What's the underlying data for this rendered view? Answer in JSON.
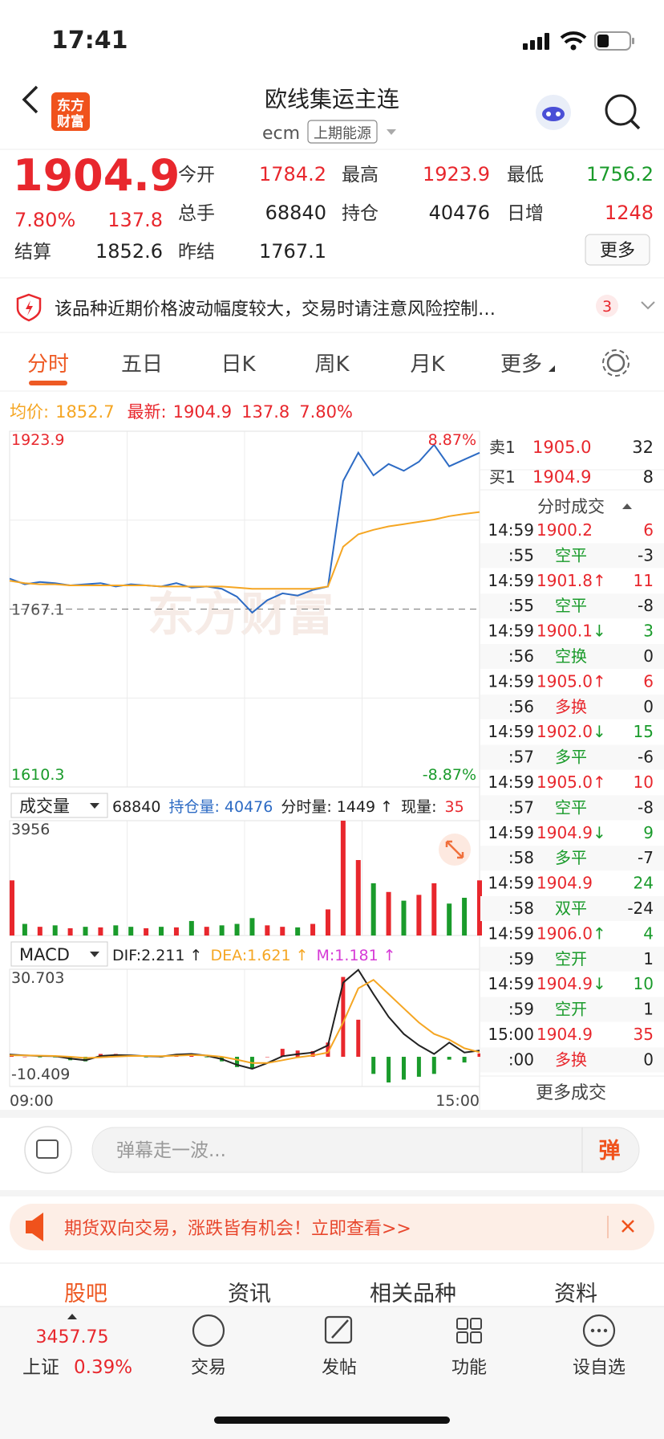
{
  "status": {
    "time": "17:41"
  },
  "header": {
    "logo": [
      "东方",
      "财富"
    ],
    "title": "欧线集运主连",
    "code": "ecm",
    "exchange": "上期能源"
  },
  "quote": {
    "price": "1904.9",
    "change_pct": "7.80%",
    "change": "137.8",
    "fields": [
      {
        "label": "今开",
        "value": "1784.2",
        "color": "#e8272d"
      },
      {
        "label": "最高",
        "value": "1923.9",
        "color": "#e8272d"
      },
      {
        "label": "最低",
        "value": "1756.2",
        "color": "#1a9b2b"
      },
      {
        "label": "总手",
        "value": "68840",
        "color": "#222222"
      },
      {
        "label": "持仓",
        "value": "40476",
        "color": "#222222"
      },
      {
        "label": "日增",
        "value": "1248",
        "color": "#e8272d"
      },
      {
        "label": "结算",
        "value": "1852.6",
        "color": "#222222"
      },
      {
        "label": "昨结",
        "value": "1767.1",
        "color": "#222222"
      }
    ],
    "more": "更多"
  },
  "alert": {
    "text": "该品种近期价格波动幅度较大，交易时请注意风险控制…",
    "count": 3
  },
  "tabs": {
    "items": [
      "分时",
      "五日",
      "日K",
      "周K",
      "月K",
      "更多"
    ],
    "active": 0
  },
  "info": {
    "avg_label": "均价:",
    "avg": "1852.7",
    "latest_label": "最新:",
    "latest": "1904.9",
    "change": "137.8",
    "change_pct": "7.80%"
  },
  "chart_data": [
    {
      "type": "line",
      "watermark": "东方财富",
      "ylim": [
        1610.3,
        1923.9
      ],
      "yticks": [
        1610.3,
        1767.1,
        1923.9
      ],
      "ytick_colors": [
        "#1a9b2b",
        "#555555",
        "#e8272d"
      ],
      "y2lim": [
        -8.87,
        8.87
      ],
      "y2ticks": [
        {
          "value": -8.87,
          "label": "-8.87%"
        },
        {
          "value": 8.87,
          "label": "8.87%"
        }
      ],
      "y2tick_colors": [
        "#1a9b2b",
        "#e8272d"
      ],
      "series": [
        {
          "color": "#2d6bc4",
          "values": [
            1794,
            1789,
            1791,
            1790,
            1788,
            1789,
            1790,
            1787,
            1789,
            1788,
            1787,
            1790,
            1786,
            1787,
            1785,
            1778,
            1764,
            1775,
            1781,
            1779,
            1784,
            1787,
            1880,
            1905,
            1885,
            1895,
            1889,
            1897,
            1912,
            1893,
            1899,
            1904.9
          ]
        },
        {
          "color": "#f5a623",
          "values": [
            1792,
            1790,
            1789,
            1789,
            1788,
            1788,
            1788,
            1788,
            1788,
            1788,
            1787,
            1787,
            1787,
            1787,
            1787,
            1786,
            1785,
            1785,
            1785,
            1785,
            1785,
            1787,
            1822,
            1833,
            1837,
            1840,
            1842,
            1844,
            1846,
            1849,
            1851,
            1852.7
          ]
        }
      ]
    },
    {
      "type": "bar",
      "title": "成交量",
      "stats": [
        {
          "text": "68840",
          "color": "#222222"
        },
        {
          "text": "持仓量: 40476",
          "color": "#2d6bc4"
        },
        {
          "text": "分时量: 1449 ↑",
          "color": "#222222"
        },
        {
          "text": "现量:",
          "color": "#222222"
        },
        {
          "text": "35",
          "color": "#e8272d"
        }
      ],
      "ylim": [
        0,
        3956
      ],
      "yticks": [
        3956
      ],
      "values": [
        1900,
        400,
        300,
        350,
        250,
        300,
        280,
        350,
        300,
        250,
        300,
        280,
        500,
        300,
        350,
        400,
        600,
        350,
        300,
        280,
        400,
        900,
        3956,
        2600,
        1800,
        1500,
        1200,
        1400,
        1800,
        1100,
        1300,
        1900
      ],
      "colors": [
        "#e8272d",
        "#1a9b2b",
        "#e8272d",
        "#1a9b2b",
        "#e8272d",
        "#1a9b2b",
        "#e8272d",
        "#1a9b2b",
        "#1a9b2b",
        "#e8272d",
        "#1a9b2b",
        "#e8272d",
        "#1a9b2b",
        "#e8272d",
        "#1a9b2b",
        "#1a9b2b",
        "#1a9b2b",
        "#e8272d",
        "#e8272d",
        "#1a9b2b",
        "#e8272d",
        "#e8272d",
        "#e8272d",
        "#e8272d",
        "#1a9b2b",
        "#e8272d",
        "#1a9b2b",
        "#e8272d",
        "#e8272d",
        "#1a9b2b",
        "#1a9b2b",
        "#e8272d"
      ]
    },
    {
      "type": "macd",
      "title": "MACD",
      "stats": [
        {
          "text": "DIF:2.211 ↑",
          "color": "#222222"
        },
        {
          "text": "DEA:1.621 ↑",
          "color": "#f5a623"
        },
        {
          "text": "M:1.181 ↑",
          "color": "#d63bd6"
        }
      ],
      "ylim": [
        -10.409,
        30.703
      ],
      "yticks": [
        -10.409,
        30.703
      ],
      "series": [
        {
          "color": "#222222",
          "values": [
            0.8,
            0.5,
            0.3,
            0.2,
            -0.6,
            -1.2,
            0.3,
            0.6,
            0.5,
            0.2,
            0.1,
            0.8,
            1.0,
            0.4,
            -0.8,
            -2.8,
            -4.2,
            -2.2,
            0.2,
            0.9,
            1.5,
            4,
            26,
            30.5,
            22,
            14,
            8,
            4,
            1,
            5,
            1.5,
            2.211
          ]
        },
        {
          "color": "#f5a623",
          "values": [
            0.5,
            0.5,
            0.4,
            0.3,
            0,
            -0.4,
            -0.2,
            0.1,
            0.3,
            0.3,
            0.2,
            0.4,
            0.6,
            0.5,
            0,
            -1,
            -2.2,
            -2.2,
            -1.2,
            -0.2,
            0.5,
            1.5,
            12,
            24,
            27,
            22,
            17,
            12,
            8,
            6,
            3,
            1.621
          ]
        }
      ],
      "histogram": {
        "values": [
          0.6,
          0,
          -0.2,
          -0.2,
          -1.2,
          -1.6,
          1,
          1,
          0.4,
          -0.2,
          -0.2,
          0.8,
          0.8,
          -0.2,
          -1.6,
          -3.6,
          -4,
          0,
          2.8,
          2.2,
          2,
          5,
          28,
          13,
          -6,
          -9,
          -8,
          -7,
          -6,
          -1,
          -2,
          1.181
        ],
        "up_color": "#e8272d",
        "down_color": "#1a9b2b"
      },
      "xlabels": [
        "09:00",
        "15:00"
      ]
    }
  ],
  "order_book": [
    {
      "label": "卖1",
      "price": "1905.0",
      "volume": 32
    },
    {
      "label": "买1",
      "price": "1904.9",
      "volume": 8
    }
  ],
  "trades": {
    "title": "分时成交",
    "rows": [
      {
        "time": "14:59",
        "price": "1900.2",
        "arrow": "",
        "volume": 6,
        "color": "#e8272d",
        "vol_color": "#e8272d",
        "detail": {
          "time": ":55",
          "type": "空平",
          "volume": -3,
          "color": "#1a9b2b"
        }
      },
      {
        "time": "14:59",
        "price": "1901.8",
        "arrow": "↑",
        "volume": 11,
        "color": "#e8272d",
        "vol_color": "#e8272d",
        "detail": {
          "time": ":55",
          "type": "空平",
          "volume": -8,
          "color": "#1a9b2b"
        }
      },
      {
        "time": "14:59",
        "price": "1900.1",
        "arrow": "↓",
        "volume": 3,
        "color": "#e8272d",
        "vol_color": "#1a9b2b",
        "detail": {
          "time": ":56",
          "type": "空换",
          "volume": 0,
          "color": "#1a9b2b"
        }
      },
      {
        "time": "14:59",
        "price": "1905.0",
        "arrow": "↑",
        "volume": 6,
        "color": "#e8272d",
        "vol_color": "#e8272d",
        "detail": {
          "time": ":56",
          "type": "多换",
          "volume": 0,
          "color": "#e8272d"
        }
      },
      {
        "time": "14:59",
        "price": "1902.0",
        "arrow": "↓",
        "volume": 15,
        "color": "#e8272d",
        "vol_color": "#1a9b2b",
        "detail": {
          "time": ":57",
          "type": "多平",
          "volume": -6,
          "color": "#1a9b2b"
        }
      },
      {
        "time": "14:59",
        "price": "1905.0",
        "arrow": "↑",
        "volume": 10,
        "color": "#e8272d",
        "vol_color": "#e8272d",
        "detail": {
          "time": ":57",
          "type": "空平",
          "volume": -8,
          "color": "#1a9b2b"
        }
      },
      {
        "time": "14:59",
        "price": "1904.9",
        "arrow": "↓",
        "volume": 9,
        "color": "#e8272d",
        "vol_color": "#1a9b2b",
        "detail": {
          "time": ":58",
          "type": "多平",
          "volume": -7,
          "color": "#1a9b2b"
        }
      },
      {
        "time": "14:59",
        "price": "1904.9",
        "arrow": "",
        "volume": 24,
        "color": "#e8272d",
        "vol_color": "#1a9b2b",
        "detail": {
          "time": ":58",
          "type": "双平",
          "volume": -24,
          "color": "#1a9b2b"
        }
      },
      {
        "time": "14:59",
        "price": "1906.0",
        "arrow": "↑",
        "volume": 4,
        "color": "#e8272d",
        "vol_color": "#1a9b2b",
        "detail": {
          "time": ":59",
          "type": "空开",
          "volume": 1,
          "color": "#1a9b2b"
        }
      },
      {
        "time": "14:59",
        "price": "1904.9",
        "arrow": "↓",
        "volume": 10,
        "color": "#e8272d",
        "vol_color": "#1a9b2b",
        "detail": {
          "time": ":59",
          "type": "空开",
          "volume": 1,
          "color": "#1a9b2b"
        }
      },
      {
        "time": "15:00",
        "price": "1904.9",
        "arrow": "",
        "volume": 35,
        "color": "#e8272d",
        "vol_color": "#e8272d",
        "detail": {
          "time": ":00",
          "type": "多换",
          "volume": 0,
          "color": "#e8272d"
        }
      }
    ],
    "more": "更多成交"
  },
  "comment": {
    "placeholder": "弹幕走一波...",
    "button": "弹"
  },
  "banner": {
    "text": "期货双向交易，涨跌皆有机会！立即查看>>"
  },
  "section_tabs": {
    "items": [
      "股吧",
      "资讯",
      "相关品种",
      "资料"
    ],
    "active": 0
  },
  "bottom_nav": {
    "index": {
      "value": 3457.75,
      "name": "上证",
      "change": "0.39%"
    },
    "items": [
      "交易",
      "发帖",
      "功能",
      "设自选"
    ]
  }
}
